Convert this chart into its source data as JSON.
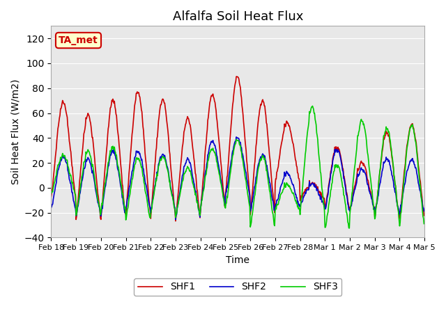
{
  "title": "Alfalfa Soil Heat Flux",
  "xlabel": "Time",
  "ylabel": "Soil Heat Flux (W/m2)",
  "ylim": [
    -40,
    130
  ],
  "yticks": [
    -40,
    -20,
    0,
    20,
    40,
    60,
    80,
    100,
    120
  ],
  "date_labels": [
    "Feb 18",
    "Feb 19",
    "Feb 20",
    "Feb 21",
    "Feb 22",
    "Feb 23",
    "Feb 24",
    "Feb 25",
    "Feb 26",
    "Feb 27",
    "Feb 28",
    "Mar 1",
    "Mar 2",
    "Mar 3",
    "Mar 4",
    "Mar 5"
  ],
  "color_shf1": "#cc0000",
  "color_shf2": "#0000cc",
  "color_shf3": "#00cc00",
  "legend_labels": [
    "SHF1",
    "SHF2",
    "SHF3"
  ],
  "annotation_text": "TA_met",
  "annotation_color": "#cc0000",
  "annotation_bg": "#ffffcc",
  "bg_color": "#e8e8e8",
  "title_fontsize": 13,
  "axis_fontsize": 10,
  "legend_fontsize": 10,
  "linewidth": 1.2,
  "daily_peaks_shf1": [
    78,
    68,
    81,
    89,
    82,
    65,
    86,
    101,
    81,
    58,
    5,
    38,
    25,
    52,
    60
  ],
  "daily_peaks_shf2": [
    30,
    28,
    35,
    35,
    32,
    28,
    44,
    46,
    32,
    15,
    5,
    36,
    19,
    28,
    28
  ],
  "daily_peaks_shf3": [
    30,
    35,
    38,
    30,
    30,
    20,
    37,
    45,
    32,
    5,
    75,
    24,
    63,
    56,
    60
  ],
  "daily_troughs_shf1": [
    -13,
    -30,
    -30,
    -27,
    -28,
    -30,
    -22,
    -13,
    -27,
    0,
    -10,
    -20,
    -20,
    -28,
    -28
  ],
  "daily_troughs_shf2": [
    -20,
    -25,
    -25,
    -20,
    -21,
    -27,
    -18,
    -10,
    -22,
    -18,
    -15,
    -22,
    -20,
    -23,
    -22
  ],
  "daily_troughs_shf3": [
    -8,
    -25,
    -22,
    -29,
    -22,
    -25,
    -18,
    -20,
    -35,
    -20,
    -25,
    -37,
    -25,
    -30,
    -35
  ]
}
